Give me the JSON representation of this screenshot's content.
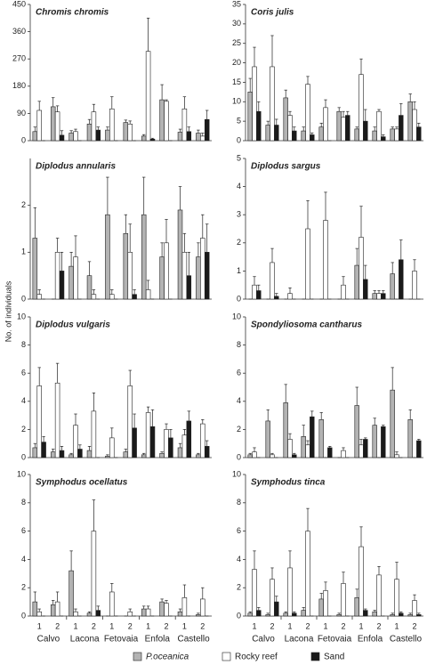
{
  "y_label": "No. of individuals",
  "chart_data": [
    {
      "type": "bar",
      "title": "Chromis chromis",
      "ylim": [
        0,
        450
      ],
      "yticks": [
        0,
        90,
        180,
        270,
        360,
        450
      ],
      "series": [
        {
          "name": "P.oceanica",
          "color": "#b3b3b3",
          "values": [
            30,
            112,
            25,
            55,
            35,
            60,
            15,
            135,
            28,
            25
          ],
          "errors": [
            15,
            30,
            8,
            15,
            10,
            8,
            5,
            50,
            10,
            10
          ]
        },
        {
          "name": "Rocky reef",
          "color": "#ffffff",
          "values": [
            100,
            95,
            30,
            95,
            105,
            55,
            295,
            130,
            105,
            15
          ],
          "errors": [
            30,
            20,
            8,
            25,
            40,
            10,
            110,
            5,
            40,
            10
          ]
        },
        {
          "name": "Sand",
          "color": "#1a1a1a",
          "values": [
            0,
            18,
            0,
            35,
            0,
            0,
            5,
            0,
            30,
            70
          ],
          "errors": [
            0,
            15,
            0,
            10,
            0,
            0,
            3,
            0,
            15,
            30
          ]
        }
      ]
    },
    {
      "type": "bar",
      "title": "Coris julis",
      "ylim": [
        0,
        35
      ],
      "yticks": [
        0,
        5,
        10,
        15,
        20,
        25,
        30,
        35
      ],
      "series": [
        {
          "color": "#b3b3b3",
          "values": [
            12.5,
            4,
            11,
            2.5,
            3.5,
            7.5,
            3,
            2.5,
            3,
            10
          ],
          "errors": [
            3.5,
            1,
            2,
            1,
            1,
            1,
            0.5,
            1,
            0.5,
            2
          ]
        },
        {
          "color": "#ffffff",
          "values": [
            19,
            19,
            6.5,
            14.5,
            8.5,
            6,
            17,
            7.5,
            3,
            8
          ],
          "errors": [
            5,
            8,
            1,
            2,
            2,
            1.5,
            4,
            0.5,
            0.5,
            2
          ]
        },
        {
          "color": "#1a1a1a",
          "values": [
            7.5,
            4,
            2.5,
            1.5,
            0,
            6.5,
            5,
            1,
            6.5,
            3.5
          ],
          "errors": [
            2.5,
            1.5,
            1,
            0.5,
            0,
            1,
            3,
            0.5,
            3,
            1
          ]
        }
      ]
    },
    {
      "type": "bar",
      "title": "Diplodus annularis",
      "ylim": [
        0,
        3
      ],
      "yticks": [
        0,
        1,
        2
      ],
      "series": [
        {
          "color": "#b3b3b3",
          "values": [
            1.3,
            0,
            0.7,
            0.5,
            1.8,
            1.4,
            1.8,
            0.9,
            1.9,
            0.9
          ],
          "errors": [
            0.65,
            0,
            0.3,
            0.3,
            0.8,
            0.4,
            0.8,
            0.3,
            0.5,
            0.3
          ]
        },
        {
          "color": "#ffffff",
          "values": [
            0.1,
            1.0,
            0.9,
            0.1,
            0.1,
            1.0,
            0.2,
            1.2,
            1.0,
            1.3
          ],
          "errors": [
            0.1,
            0.3,
            0.45,
            0.1,
            0.1,
            0.6,
            0.2,
            0.5,
            0.4,
            0.5
          ]
        },
        {
          "color": "#1a1a1a",
          "values": [
            0,
            0.6,
            0,
            0,
            0,
            0.1,
            0,
            0,
            0.5,
            1.0
          ],
          "errors": [
            0,
            0.4,
            0,
            0,
            0,
            0.1,
            0,
            0,
            0.5,
            0.6
          ]
        }
      ]
    },
    {
      "type": "bar",
      "title": "Diplodus sargus",
      "ylim": [
        0,
        5
      ],
      "yticks": [
        0,
        1,
        2,
        3,
        4,
        5
      ],
      "series": [
        {
          "color": "#b3b3b3",
          "values": [
            0,
            0,
            0,
            0,
            0,
            0,
            1.2,
            0.2,
            0.9,
            0
          ],
          "errors": [
            0,
            0,
            0,
            0,
            0,
            0,
            0.6,
            0.1,
            0.4,
            0
          ]
        },
        {
          "color": "#ffffff",
          "values": [
            0.5,
            1.3,
            0.2,
            2.5,
            2.8,
            0.5,
            2.2,
            0.2,
            0,
            1.0
          ],
          "errors": [
            0.3,
            0.5,
            0.2,
            1,
            1,
            0.3,
            1.1,
            0.1,
            0,
            0.4
          ]
        },
        {
          "color": "#1a1a1a",
          "values": [
            0.3,
            0.1,
            0,
            0,
            0,
            0,
            0.7,
            0.2,
            1.4,
            0
          ],
          "errors": [
            0.2,
            0.1,
            0,
            0,
            0,
            0,
            0.5,
            0.1,
            0.7,
            0
          ]
        }
      ]
    },
    {
      "type": "bar",
      "title": "Diplodus vulgaris",
      "ylim": [
        0,
        10
      ],
      "yticks": [
        0,
        2,
        4,
        6,
        8,
        10
      ],
      "series": [
        {
          "color": "#b3b3b3",
          "values": [
            0.7,
            0.4,
            0.2,
            0.5,
            0.1,
            0.4,
            0.2,
            0.3,
            0.7,
            0.2
          ],
          "errors": [
            0.3,
            0.2,
            0.1,
            0.3,
            0.1,
            0.2,
            0.1,
            0.1,
            0.3,
            0.1
          ]
        },
        {
          "color": "#ffffff",
          "values": [
            5.1,
            5.3,
            2.3,
            3.3,
            1.4,
            5.1,
            3.2,
            2.0,
            1.6,
            2.4
          ],
          "errors": [
            1.3,
            1.4,
            0.8,
            1.3,
            0.7,
            1.1,
            0.4,
            0.4,
            0.4,
            0.3
          ]
        },
        {
          "color": "#1a1a1a",
          "values": [
            1.1,
            0.5,
            0.6,
            0,
            0,
            2.1,
            2.2,
            1.4,
            2.6,
            0.8
          ],
          "errors": [
            0.4,
            0.3,
            0.3,
            0,
            0,
            1,
            1.2,
            0.6,
            0.7,
            0.4
          ]
        }
      ]
    },
    {
      "type": "bar",
      "title": "Spondyliosoma cantharus",
      "ylim": [
        0,
        10
      ],
      "yticks": [
        0,
        2,
        4,
        6,
        8,
        10
      ],
      "series": [
        {
          "color": "#b3b3b3",
          "values": [
            0.2,
            2.6,
            3.9,
            1.5,
            2.7,
            0,
            3.7,
            2.3,
            4.8,
            2.7
          ],
          "errors": [
            0.1,
            0.8,
            1.3,
            0.8,
            0.5,
            0,
            1.3,
            0.5,
            1.6,
            0.7
          ]
        },
        {
          "color": "#ffffff",
          "values": [
            0.4,
            0.2,
            1.3,
            0.9,
            0,
            0.5,
            0.9,
            0,
            0.2,
            0
          ],
          "errors": [
            0.3,
            0.1,
            0.4,
            0.3,
            0,
            0.2,
            0.4,
            0,
            0.2,
            0
          ]
        },
        {
          "color": "#1a1a1a",
          "values": [
            0,
            0,
            0.2,
            2.9,
            0.7,
            0,
            1.3,
            2.2,
            0,
            1.2
          ],
          "errors": [
            0,
            0,
            0.1,
            0.4,
            0.1,
            0,
            0.1,
            0.1,
            0,
            0.1
          ]
        }
      ]
    },
    {
      "type": "bar",
      "title": "Symphodus ocellatus",
      "ylim": [
        0,
        10
      ],
      "yticks": [
        0,
        2,
        4,
        6,
        8,
        10
      ],
      "categories": [
        "1",
        "2",
        "1",
        "2",
        "1",
        "2",
        "1",
        "2",
        "1",
        "2"
      ],
      "groups": [
        "Calvo",
        "Lacona",
        "Fetovaia",
        "Enfola",
        "Castello"
      ],
      "series": [
        {
          "color": "#b3b3b3",
          "values": [
            1.0,
            0.8,
            3.2,
            0.2,
            0,
            0,
            0.5,
            1.0,
            0.3,
            0.1
          ],
          "errors": [
            0.7,
            0.3,
            1.4,
            0.1,
            0,
            0,
            0.2,
            0.2,
            0.2,
            0.1
          ]
        },
        {
          "color": "#ffffff",
          "values": [
            0.3,
            1.0,
            0.3,
            6.0,
            1.7,
            0.3,
            0.5,
            0.9,
            1.3,
            1.2
          ],
          "errors": [
            0.2,
            0.7,
            0.2,
            2.2,
            0.6,
            0.2,
            0.2,
            0.2,
            0.9,
            0.8
          ]
        },
        {
          "color": "#1a1a1a",
          "values": [
            0,
            0,
            0,
            0.4,
            0,
            0,
            0,
            0,
            0,
            0
          ],
          "errors": [
            0,
            0,
            0,
            0.3,
            0,
            0,
            0,
            0,
            0,
            0
          ]
        }
      ]
    },
    {
      "type": "bar",
      "title": "Symphodus tinca",
      "ylim": [
        0,
        10
      ],
      "yticks": [
        0,
        2,
        4,
        6,
        8,
        10
      ],
      "categories": [
        "1",
        "2",
        "1",
        "2",
        "1",
        "2",
        "1",
        "2",
        "1",
        "2"
      ],
      "groups": [
        "Calvo",
        "Lacona",
        "Fetovaia",
        "Enfola",
        "Castello"
      ],
      "series": [
        {
          "color": "#b3b3b3",
          "values": [
            0.2,
            0.1,
            0.2,
            0.4,
            1.2,
            0.1,
            1.3,
            0.3,
            0.1,
            0.1
          ],
          "errors": [
            0.1,
            0.1,
            0.1,
            0.2,
            0.4,
            0.1,
            0.6,
            0.1,
            0.1,
            0.1
          ]
        },
        {
          "color": "#ffffff",
          "values": [
            3.3,
            2.6,
            3.4,
            6.0,
            1.8,
            2.3,
            4.9,
            2.9,
            2.6,
            1.1
          ],
          "errors": [
            1.3,
            0.8,
            1.2,
            1.6,
            0.6,
            0.8,
            1.4,
            0.6,
            1.2,
            0.4
          ]
        },
        {
          "color": "#1a1a1a",
          "values": [
            0.4,
            1.0,
            0.2,
            0,
            0,
            0,
            0.4,
            0,
            0.2,
            0.1
          ],
          "errors": [
            0.2,
            0.4,
            0.1,
            0,
            0,
            0,
            0.1,
            0,
            0.1,
            0.1
          ]
        }
      ]
    }
  ]
}
